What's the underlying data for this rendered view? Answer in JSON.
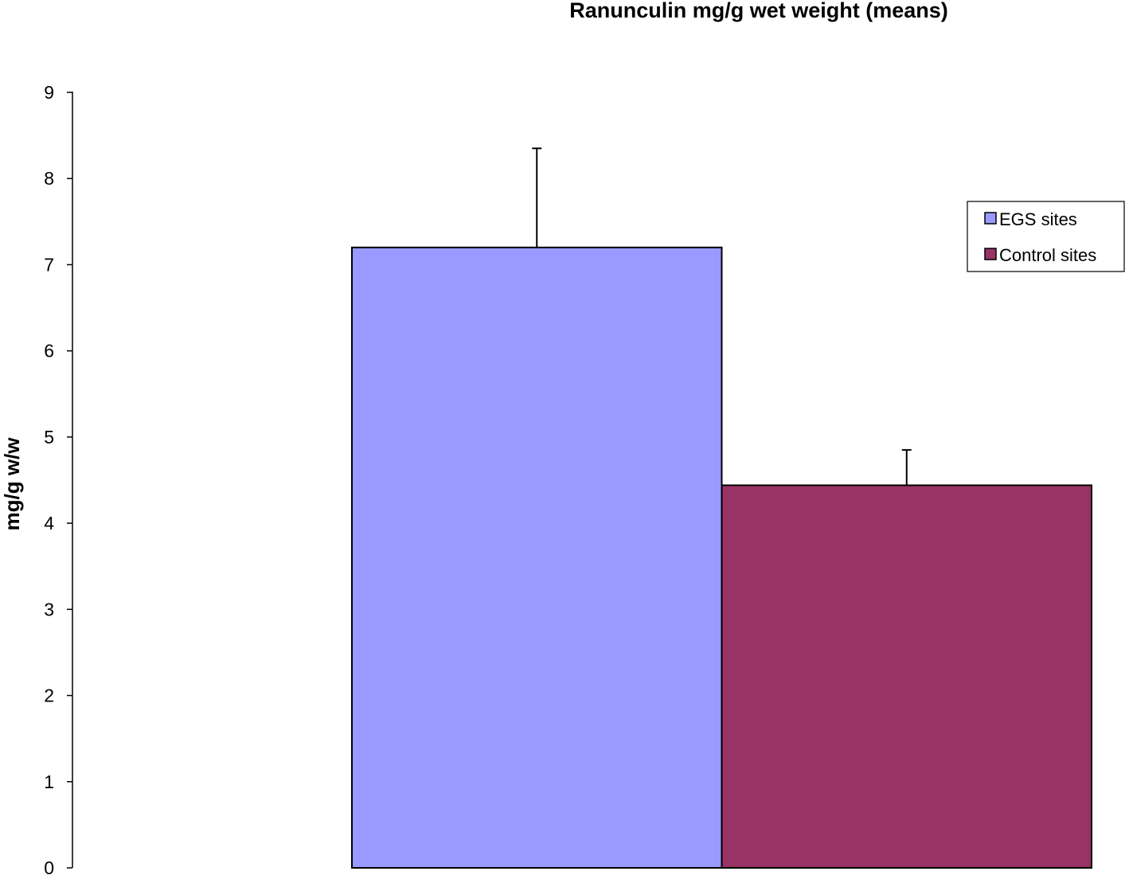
{
  "chart_data": {
    "type": "bar",
    "title": "Ranunculin mg/g wet weight (means)",
    "xlabel": "",
    "ylabel": "mg/g w/w",
    "ylim": [
      0,
      9
    ],
    "yticks": [
      "0",
      "1",
      "2",
      "3",
      "4",
      "5",
      "6",
      "7",
      "8",
      "9"
    ],
    "grid": false,
    "legend_position": "right",
    "series": [
      {
        "name": "EGS sites",
        "value": 7.2,
        "error": 1.15,
        "color": "#9999ff"
      },
      {
        "name": "Control sites",
        "value": 4.44,
        "error": 0.41,
        "color": "#993366"
      }
    ]
  }
}
